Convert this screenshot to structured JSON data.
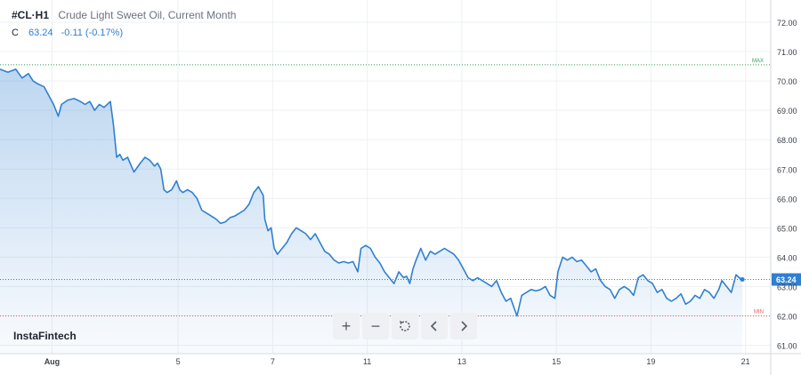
{
  "header": {
    "symbol": "#CL·H1",
    "description": "Crude Light Sweet Oil, Current Month",
    "close_label": "C",
    "price": "63.24",
    "change": "-0.11 (-0.17%)"
  },
  "brand": "InstaFintech",
  "toolbar": [
    {
      "name": "zoom-in-button",
      "icon": "plus-icon",
      "glyph": "+"
    },
    {
      "name": "zoom-out-button",
      "icon": "minus-icon",
      "glyph": "−"
    },
    {
      "name": "reset-button",
      "icon": "reset-icon",
      "glyph": ""
    },
    {
      "name": "scroll-left-button",
      "icon": "chevron-left-icon",
      "glyph": ""
    },
    {
      "name": "scroll-right-button",
      "icon": "chevron-right-icon",
      "glyph": ""
    }
  ],
  "colors": {
    "line": "#2f80d1",
    "max": "#2e9e5b",
    "min": "#e05a5a",
    "tag_bg": "#2f80d1"
  },
  "chart_data": {
    "type": "area",
    "title": "Crude Light Sweet Oil, Current Month",
    "ylim": [
      60.7,
      72.6
    ],
    "y_ticks": [
      "72.00",
      "71.00",
      "70.00",
      "69.00",
      "68.00",
      "67.00",
      "66.00",
      "65.00",
      "64.00",
      "63.00",
      "62.00",
      "61.00"
    ],
    "x_tick_labels": [
      "Aug",
      "5",
      "7",
      "11",
      "13",
      "15",
      "19",
      "21"
    ],
    "x_tick_positions": [
      0.5,
      8.5,
      14.5,
      20.5,
      26.5,
      32.5,
      38.5,
      44.5
    ],
    "xlim": [
      -2.8,
      46.1
    ],
    "max_level": 70.55,
    "max_label": "MAX",
    "min_level": 62.0,
    "min_label": "MIN",
    "last_price": 63.24,
    "last_price_label": "63.24",
    "series": [
      {
        "values": [
          [
            -2.8,
            70.4
          ],
          [
            -2.3,
            70.3
          ],
          [
            -1.8,
            70.4
          ],
          [
            -1.4,
            70.1
          ],
          [
            -1.0,
            70.25
          ],
          [
            -0.7,
            70.0
          ],
          [
            -0.4,
            69.9
          ],
          [
            0.0,
            69.8
          ],
          [
            0.3,
            69.5
          ],
          [
            0.6,
            69.2
          ],
          [
            0.9,
            68.8
          ],
          [
            1.1,
            69.2
          ],
          [
            1.5,
            69.35
          ],
          [
            1.9,
            69.4
          ],
          [
            2.3,
            69.3
          ],
          [
            2.6,
            69.2
          ],
          [
            2.9,
            69.3
          ],
          [
            3.2,
            69.0
          ],
          [
            3.5,
            69.2
          ],
          [
            3.8,
            69.1
          ],
          [
            4.2,
            69.3
          ],
          [
            4.4,
            68.5
          ],
          [
            4.6,
            67.4
          ],
          [
            4.8,
            67.5
          ],
          [
            5.0,
            67.3
          ],
          [
            5.3,
            67.4
          ],
          [
            5.7,
            66.9
          ],
          [
            6.1,
            67.2
          ],
          [
            6.4,
            67.4
          ],
          [
            6.7,
            67.3
          ],
          [
            7.0,
            67.1
          ],
          [
            7.2,
            67.2
          ],
          [
            7.4,
            67.0
          ],
          [
            7.6,
            66.3
          ],
          [
            7.8,
            66.2
          ],
          [
            8.1,
            66.3
          ],
          [
            8.4,
            66.6
          ],
          [
            8.6,
            66.3
          ],
          [
            8.8,
            66.2
          ],
          [
            9.1,
            66.3
          ],
          [
            9.4,
            66.2
          ],
          [
            9.7,
            66.0
          ],
          [
            10.0,
            65.6
          ],
          [
            10.3,
            65.5
          ],
          [
            10.6,
            65.4
          ],
          [
            10.9,
            65.3
          ],
          [
            11.2,
            65.15
          ],
          [
            11.5,
            65.2
          ],
          [
            11.8,
            65.35
          ],
          [
            12.1,
            65.4
          ],
          [
            12.4,
            65.5
          ],
          [
            12.7,
            65.6
          ],
          [
            13.0,
            65.8
          ],
          [
            13.3,
            66.2
          ],
          [
            13.6,
            66.4
          ],
          [
            13.9,
            66.1
          ],
          [
            14.0,
            65.3
          ],
          [
            14.2,
            64.9
          ],
          [
            14.4,
            65.0
          ],
          [
            14.6,
            64.3
          ],
          [
            14.8,
            64.1
          ],
          [
            15.1,
            64.3
          ],
          [
            15.4,
            64.5
          ],
          [
            15.7,
            64.8
          ],
          [
            16.0,
            65.0
          ],
          [
            16.3,
            64.9
          ],
          [
            16.6,
            64.8
          ],
          [
            16.9,
            64.6
          ],
          [
            17.2,
            64.8
          ],
          [
            17.5,
            64.5
          ],
          [
            17.8,
            64.2
          ],
          [
            18.1,
            64.1
          ],
          [
            18.4,
            63.9
          ],
          [
            18.7,
            63.8
          ],
          [
            19.0,
            63.85
          ],
          [
            19.3,
            63.8
          ],
          [
            19.6,
            63.85
          ],
          [
            19.9,
            63.5
          ],
          [
            20.1,
            64.3
          ],
          [
            20.4,
            64.4
          ],
          [
            20.7,
            64.3
          ],
          [
            21.0,
            64.0
          ],
          [
            21.3,
            63.8
          ],
          [
            21.6,
            63.5
          ],
          [
            21.9,
            63.3
          ],
          [
            22.2,
            63.1
          ],
          [
            22.5,
            63.5
          ],
          [
            22.8,
            63.3
          ],
          [
            23.0,
            63.35
          ],
          [
            23.2,
            63.1
          ],
          [
            23.4,
            63.6
          ],
          [
            23.6,
            63.9
          ],
          [
            23.9,
            64.3
          ],
          [
            24.2,
            63.9
          ],
          [
            24.5,
            64.2
          ],
          [
            24.8,
            64.1
          ],
          [
            25.1,
            64.2
          ],
          [
            25.4,
            64.3
          ],
          [
            25.7,
            64.2
          ],
          [
            26.0,
            64.1
          ],
          [
            26.3,
            63.9
          ],
          [
            26.6,
            63.6
          ],
          [
            26.9,
            63.3
          ],
          [
            27.2,
            63.2
          ],
          [
            27.5,
            63.3
          ],
          [
            27.8,
            63.2
          ],
          [
            28.1,
            63.1
          ],
          [
            28.4,
            63.0
          ],
          [
            28.7,
            63.2
          ],
          [
            29.0,
            62.8
          ],
          [
            29.3,
            62.5
          ],
          [
            29.6,
            62.6
          ],
          [
            29.8,
            62.3
          ],
          [
            30.0,
            62.0
          ],
          [
            30.3,
            62.7
          ],
          [
            30.6,
            62.8
          ],
          [
            30.9,
            62.9
          ],
          [
            31.2,
            62.85
          ],
          [
            31.5,
            62.9
          ],
          [
            31.8,
            63.0
          ],
          [
            32.1,
            62.7
          ],
          [
            32.4,
            62.6
          ],
          [
            32.6,
            63.5
          ],
          [
            32.9,
            64.0
          ],
          [
            33.2,
            63.9
          ],
          [
            33.5,
            64.0
          ],
          [
            33.8,
            63.85
          ],
          [
            34.1,
            63.9
          ],
          [
            34.4,
            63.7
          ],
          [
            34.7,
            63.5
          ],
          [
            35.0,
            63.6
          ],
          [
            35.3,
            63.2
          ],
          [
            35.6,
            63.0
          ],
          [
            35.9,
            62.9
          ],
          [
            36.2,
            62.6
          ],
          [
            36.5,
            62.9
          ],
          [
            36.8,
            63.0
          ],
          [
            37.1,
            62.9
          ],
          [
            37.4,
            62.7
          ],
          [
            37.7,
            63.3
          ],
          [
            38.0,
            63.4
          ],
          [
            38.3,
            63.2
          ],
          [
            38.6,
            63.1
          ],
          [
            38.9,
            62.8
          ],
          [
            39.2,
            62.9
          ],
          [
            39.5,
            62.6
          ],
          [
            39.8,
            62.5
          ],
          [
            40.1,
            62.6
          ],
          [
            40.4,
            62.75
          ],
          [
            40.7,
            62.4
          ],
          [
            41.0,
            62.5
          ],
          [
            41.3,
            62.7
          ],
          [
            41.6,
            62.6
          ],
          [
            41.9,
            62.9
          ],
          [
            42.2,
            62.8
          ],
          [
            42.5,
            62.6
          ],
          [
            42.8,
            62.9
          ],
          [
            43.0,
            63.2
          ],
          [
            43.3,
            63.0
          ],
          [
            43.6,
            62.8
          ],
          [
            43.9,
            63.4
          ],
          [
            44.1,
            63.3
          ],
          [
            44.3,
            63.24
          ]
        ]
      }
    ]
  }
}
